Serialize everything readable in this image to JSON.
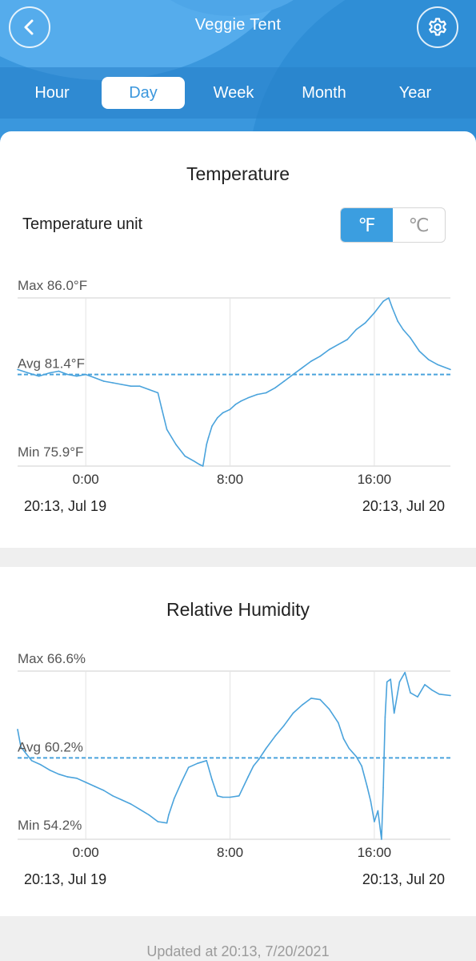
{
  "header": {
    "title": "Veggie Tent",
    "back_icon": "chevron-left-icon",
    "settings_icon": "gear-icon",
    "tabs": [
      {
        "label": "Hour",
        "active": false
      },
      {
        "label": "Day",
        "active": true
      },
      {
        "label": "Week",
        "active": false
      },
      {
        "label": "Month",
        "active": false
      },
      {
        "label": "Year",
        "active": false
      }
    ]
  },
  "temperature": {
    "title": "Temperature",
    "unit_label": "Temperature unit",
    "unit_fahrenheit": "℉",
    "unit_celsius": "℃",
    "selected_unit": "F"
  },
  "humidity": {
    "title": "Relative Humidity"
  },
  "footer": {
    "updated": "Updated at 20:13,  7/20/2021"
  },
  "colors": {
    "accent": "#3b9ee0",
    "line": "#4aa3dc",
    "header_bg": "#3a97dd"
  },
  "chart_data": [
    {
      "type": "line",
      "title": "Temperature",
      "max_label": "Max 86.0°F",
      "avg_label": "Avg 81.4°F",
      "min_label": "Min 75.9°F",
      "ylim": [
        75.9,
        86.0
      ],
      "avg": 81.4,
      "xlim": [
        -3.78,
        20.22
      ],
      "x_ticks": [
        {
          "value": 0,
          "label": "0:00"
        },
        {
          "value": 8,
          "label": "8:00"
        },
        {
          "value": 16,
          "label": "16:00"
        }
      ],
      "start_label": "20:13,  Jul 19",
      "end_label": "20:13,  Jul 20",
      "grid": true,
      "x": [
        -3.78,
        -3.2,
        -2.6,
        -2.0,
        -1.5,
        -1.0,
        -0.5,
        0.0,
        0.5,
        1.0,
        1.5,
        2.0,
        2.5,
        3.0,
        3.5,
        4.0,
        4.2,
        4.5,
        5.0,
        5.5,
        6.0,
        6.3,
        6.5,
        6.7,
        6.8,
        7.0,
        7.3,
        7.6,
        8.0,
        8.3,
        8.6,
        9.0,
        9.5,
        10.0,
        10.5,
        11.0,
        11.5,
        12.0,
        12.5,
        13.0,
        13.5,
        14.0,
        14.5,
        15.0,
        15.5,
        16.0,
        16.5,
        16.8,
        17.0,
        17.3,
        17.6,
        18.0,
        18.5,
        19.0,
        19.5,
        20.22
      ],
      "y": [
        81.7,
        81.5,
        81.3,
        81.5,
        81.6,
        81.4,
        81.3,
        81.4,
        81.2,
        81.0,
        80.9,
        80.8,
        80.7,
        80.7,
        80.5,
        80.3,
        79.4,
        78.1,
        77.2,
        76.5,
        76.2,
        76.0,
        75.9,
        77.2,
        77.6,
        78.3,
        78.8,
        79.1,
        79.3,
        79.6,
        79.8,
        80.0,
        80.2,
        80.3,
        80.6,
        81.0,
        81.4,
        81.8,
        82.2,
        82.5,
        82.9,
        83.2,
        83.5,
        84.1,
        84.5,
        85.1,
        85.8,
        86.0,
        85.4,
        84.6,
        84.1,
        83.6,
        82.8,
        82.3,
        82.0,
        81.7
      ]
    },
    {
      "type": "line",
      "title": "Relative Humidity",
      "max_label": "Max 66.6%",
      "avg_label": "Avg 60.2%",
      "min_label": "Min 54.2%",
      "ylim": [
        54.2,
        66.6
      ],
      "avg": 60.2,
      "xlim": [
        -3.78,
        20.22
      ],
      "x_ticks": [
        {
          "value": 0,
          "label": "0:00"
        },
        {
          "value": 8,
          "label": "8:00"
        },
        {
          "value": 16,
          "label": "16:00"
        }
      ],
      "start_label": "20:13,  Jul 19",
      "end_label": "20:13,  Jul 20",
      "grid": true,
      "x": [
        -3.78,
        -3.6,
        -3.3,
        -3.0,
        -2.5,
        -2.0,
        -1.5,
        -1.0,
        -0.5,
        0.0,
        0.5,
        1.0,
        1.5,
        2.0,
        2.5,
        3.0,
        3.5,
        4.0,
        4.5,
        4.6,
        4.9,
        5.3,
        5.7,
        6.2,
        6.7,
        7.0,
        7.3,
        7.6,
        8.0,
        8.5,
        9.0,
        9.3,
        9.6,
        10.0,
        10.5,
        11.0,
        11.5,
        12.0,
        12.5,
        13.0,
        13.5,
        14.0,
        14.3,
        14.6,
        15.0,
        15.3,
        15.6,
        15.8,
        16.0,
        16.2,
        16.4,
        16.5,
        16.6,
        16.7,
        16.9,
        17.1,
        17.4,
        17.7,
        18.0,
        18.4,
        18.8,
        19.2,
        19.6,
        20.22
      ],
      "y": [
        62.3,
        61.0,
        60.5,
        60.0,
        59.7,
        59.3,
        59.0,
        58.8,
        58.7,
        58.4,
        58.1,
        57.8,
        57.4,
        57.1,
        56.8,
        56.4,
        56.0,
        55.5,
        55.4,
        56.0,
        57.2,
        58.4,
        59.5,
        59.8,
        60.0,
        58.6,
        57.4,
        57.3,
        57.3,
        57.4,
        58.8,
        59.6,
        60.1,
        60.9,
        61.8,
        62.6,
        63.5,
        64.1,
        64.6,
        64.5,
        63.8,
        62.8,
        61.6,
        60.9,
        60.3,
        59.6,
        58.1,
        57.0,
        55.5,
        56.3,
        54.2,
        58.0,
        63.2,
        65.8,
        66.0,
        63.5,
        65.8,
        66.5,
        65.0,
        64.7,
        65.6,
        65.2,
        64.9,
        64.8
      ]
    }
  ]
}
